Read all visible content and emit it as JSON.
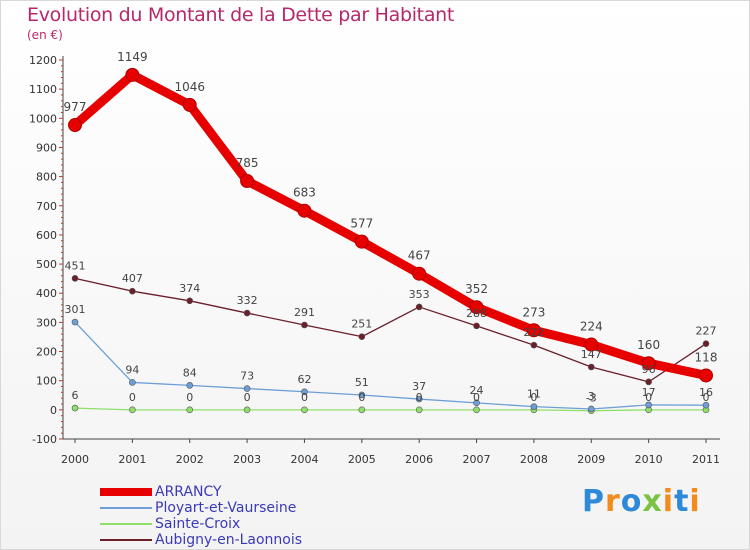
{
  "chart_data": {
    "type": "line",
    "title": "Evolution du Montant de la Dette par Habitant",
    "unit": "(en €)",
    "x": [
      "2000",
      "2001",
      "2002",
      "2003",
      "2004",
      "2005",
      "2006",
      "2007",
      "2008",
      "2009",
      "2010",
      "2011"
    ],
    "ylim": [
      -100,
      1200
    ],
    "yticks": [
      -100,
      0,
      100,
      200,
      300,
      400,
      500,
      600,
      700,
      800,
      900,
      1000,
      1100,
      1200
    ],
    "grid": false,
    "legend_position": "bottom-left",
    "series": [
      {
        "name": "ARRANCY",
        "color": "#e60000",
        "values": [
          977,
          1149,
          1046,
          785,
          683,
          577,
          467,
          352,
          273,
          224,
          160,
          118
        ]
      },
      {
        "name": "Ployart-et-Vaurseine",
        "color": "#6d9fd6",
        "values": [
          301,
          94,
          84,
          73,
          62,
          51,
          37,
          24,
          11,
          3,
          17,
          16
        ]
      },
      {
        "name": "Sainte-Croix",
        "color": "#8fe06a",
        "values": [
          6,
          0,
          0,
          0,
          0,
          0,
          0,
          0,
          0,
          -3,
          0,
          0
        ]
      },
      {
        "name": "Aubigny-en-Laonnois",
        "color": "#6b1f2a",
        "values": [
          451,
          407,
          374,
          332,
          291,
          251,
          353,
          288,
          222,
          147,
          96,
          227
        ]
      }
    ]
  },
  "logo": {
    "text": "Proxiti",
    "colors": [
      "#2e8ad8",
      "#f28b1c",
      "#2e8ad8",
      "#7cc242",
      "#f28b1c",
      "#2e8ad8",
      "#f28b1c"
    ]
  }
}
